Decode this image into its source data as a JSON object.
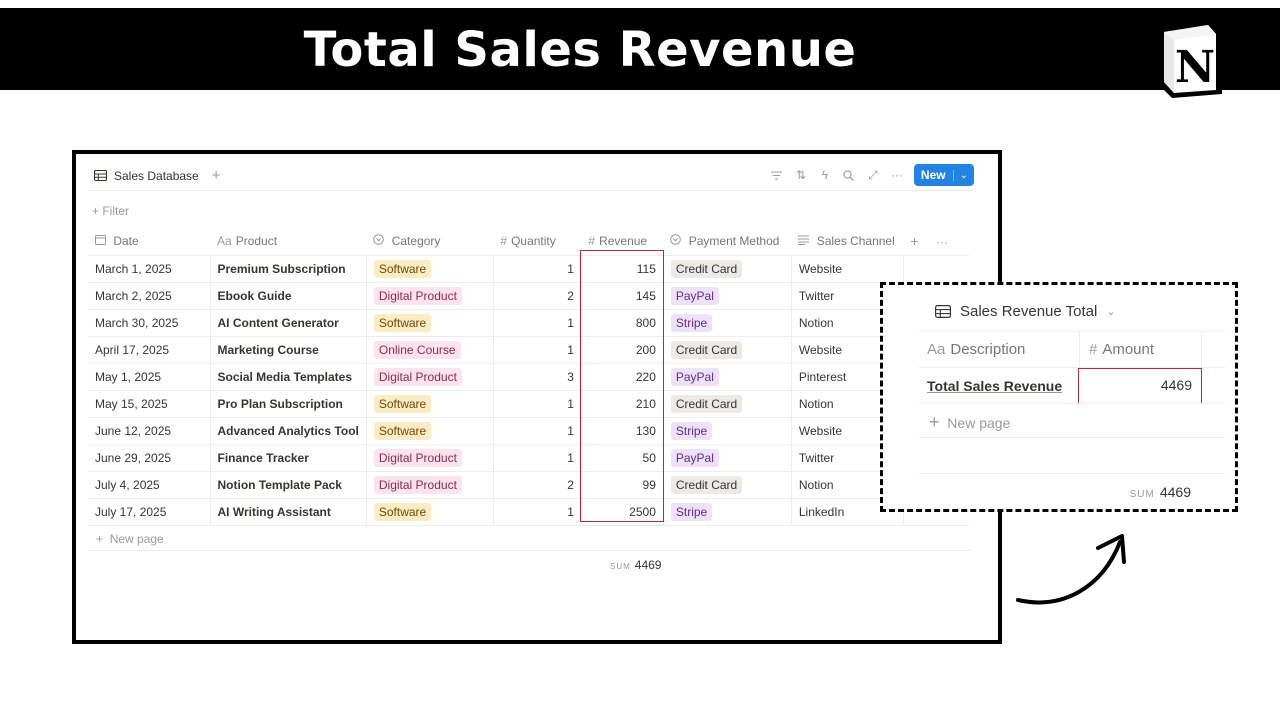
{
  "banner": {
    "title": "Total Sales Revenue"
  },
  "database": {
    "title": "Sales Database",
    "new_label": "New",
    "filter_label": "Filter",
    "new_page_label": "New page",
    "sum_label": "SUM",
    "sum_value": "4469",
    "columns": {
      "date": {
        "icon": "calendar-icon",
        "label": "Date"
      },
      "product": {
        "icon": "Aa",
        "label": "Product"
      },
      "category": {
        "icon": "select-icon",
        "label": "Category"
      },
      "quantity": {
        "icon": "#",
        "label": "Quantity"
      },
      "revenue": {
        "icon": "#",
        "label": "Revenue"
      },
      "payment": {
        "icon": "select-icon",
        "label": "Payment Method"
      },
      "channel": {
        "icon": "text-lines-icon",
        "label": "Sales Channel"
      }
    },
    "rows": [
      {
        "date": "March 1, 2025",
        "product": "Premium Subscription",
        "category": "Software",
        "quantity": "1",
        "revenue": "115",
        "payment": "Credit Card",
        "channel": "Website"
      },
      {
        "date": "March 2, 2025",
        "product": "Ebook Guide",
        "category": "Digital Product",
        "quantity": "2",
        "revenue": "145",
        "payment": "PayPal",
        "channel": "Twitter"
      },
      {
        "date": "March 30, 2025",
        "product": "AI Content Generator",
        "category": "Software",
        "quantity": "1",
        "revenue": "800",
        "payment": "Stripe",
        "channel": "Notion"
      },
      {
        "date": "April 17, 2025",
        "product": "Marketing Course",
        "category": "Online Course",
        "quantity": "1",
        "revenue": "200",
        "payment": "Credit Card",
        "channel": "Website"
      },
      {
        "date": "May 1, 2025",
        "product": "Social Media Templates",
        "category": "Digital Product",
        "quantity": "3",
        "revenue": "220",
        "payment": "PayPal",
        "channel": "Pinterest"
      },
      {
        "date": "May 15, 2025",
        "product": "Pro Plan Subscription",
        "category": "Software",
        "quantity": "1",
        "revenue": "210",
        "payment": "Credit Card",
        "channel": "Notion"
      },
      {
        "date": "June 12, 2025",
        "product": "Advanced Analytics Tool",
        "category": "Software",
        "quantity": "1",
        "revenue": "130",
        "payment": "Stripe",
        "channel": "Website"
      },
      {
        "date": "June 29, 2025",
        "product": "Finance Tracker",
        "category": "Digital Product",
        "quantity": "1",
        "revenue": "50",
        "payment": "PayPal",
        "channel": "Twitter"
      },
      {
        "date": "July 4, 2025",
        "product": "Notion Template Pack",
        "category": "Digital Product",
        "quantity": "2",
        "revenue": "99",
        "payment": "Credit Card",
        "channel": "Notion"
      },
      {
        "date": "July 17, 2025",
        "product": "AI Writing Assistant",
        "category": "Software",
        "quantity": "1",
        "revenue": "2500",
        "payment": "Stripe",
        "channel": "LinkedIn"
      }
    ]
  },
  "tag_colors": {
    "Software": {
      "bg": "#fbecc3",
      "fg": "#6b4a0e"
    },
    "Digital Product": {
      "bg": "#fbe4ec",
      "fg": "#8a2a52"
    },
    "Online Course": {
      "bg": "#fbe4ec",
      "fg": "#8a2a52"
    },
    "Credit Card": {
      "bg": "#ebeae7",
      "fg": "#37352f"
    },
    "PayPal": {
      "bg": "#ede2f8",
      "fg": "#5d2f8a"
    },
    "Stripe": {
      "bg": "#ede2f8",
      "fg": "#5d2f8a"
    }
  },
  "summary": {
    "title": "Sales Revenue Total",
    "col_description": "Description",
    "col_description_icon": "Aa",
    "col_amount": "Amount",
    "col_amount_icon": "#",
    "row_description": "Total Sales Revenue",
    "row_amount": "4469",
    "new_page_label": "New page",
    "sum_label": "SUM",
    "sum_value": "4469"
  },
  "colors": {
    "accent_blue": "#2383e2",
    "highlight_red": "#b22a3a"
  }
}
